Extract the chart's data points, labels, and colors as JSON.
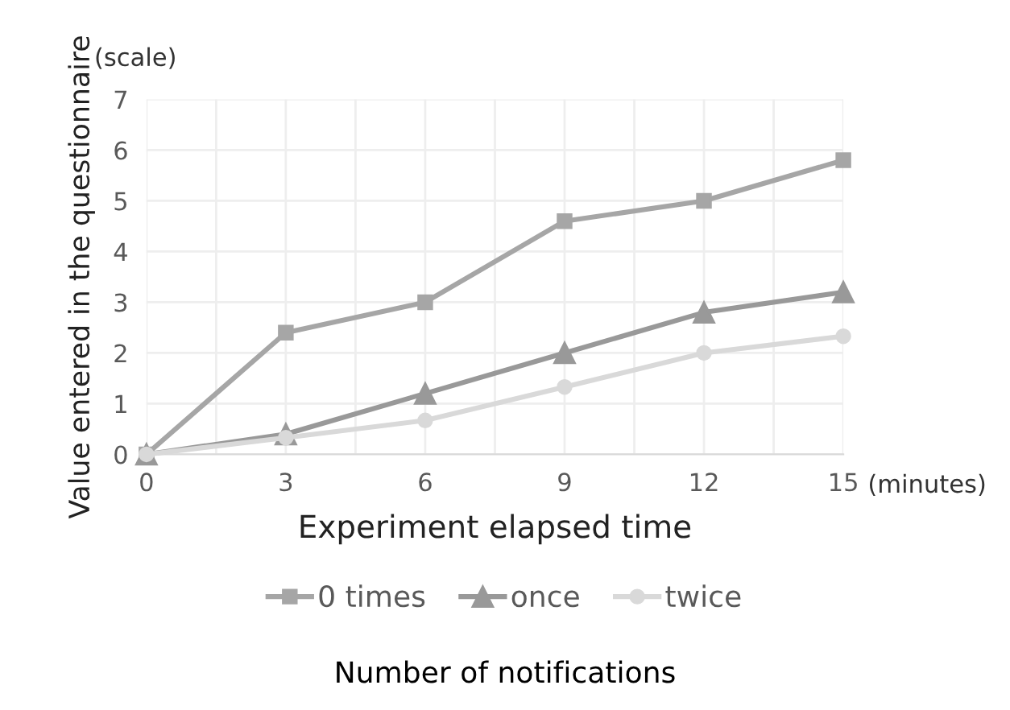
{
  "chart_data": {
    "type": "line",
    "xlabel": "Experiment elapsed time",
    "ylabel": "Value entered in the questionnaire",
    "legend_title": "Number of notifications",
    "annotations": [
      "(scale)",
      "(minutes)"
    ],
    "x": [
      0,
      3,
      6,
      9,
      12,
      15
    ],
    "series": [
      {
        "name": "0 times",
        "color": "#a6a6a6",
        "marker": "square",
        "values": [
          0,
          2.4,
          3,
          4.6,
          5,
          5.8
        ]
      },
      {
        "name": "once",
        "color": "#999999",
        "marker": "triangle",
        "values": [
          0,
          0.4,
          1.2,
          2,
          2.8,
          3.2
        ]
      },
      {
        "name": "twice",
        "color": "#d9d9d9",
        "marker": "circle",
        "values": [
          0,
          0.33,
          0.67,
          1.33,
          2,
          2.33
        ]
      }
    ],
    "xlim": [
      0,
      15
    ],
    "ylim": [
      0,
      7
    ],
    "xticks": [
      0,
      {
        "value": 1.5,
        "label": null
      },
      3,
      {
        "value": 4.5,
        "label": null
      },
      6,
      {
        "value": 7.5,
        "label": null
      },
      9,
      {
        "value": 10.5,
        "label": null
      },
      12,
      {
        "value": 13.5,
        "label": null
      },
      15
    ],
    "yticks": [
      0,
      1,
      2,
      3,
      4,
      5,
      6,
      7
    ],
    "grid": true,
    "legend": "bottom",
    "line_style": "solid"
  }
}
